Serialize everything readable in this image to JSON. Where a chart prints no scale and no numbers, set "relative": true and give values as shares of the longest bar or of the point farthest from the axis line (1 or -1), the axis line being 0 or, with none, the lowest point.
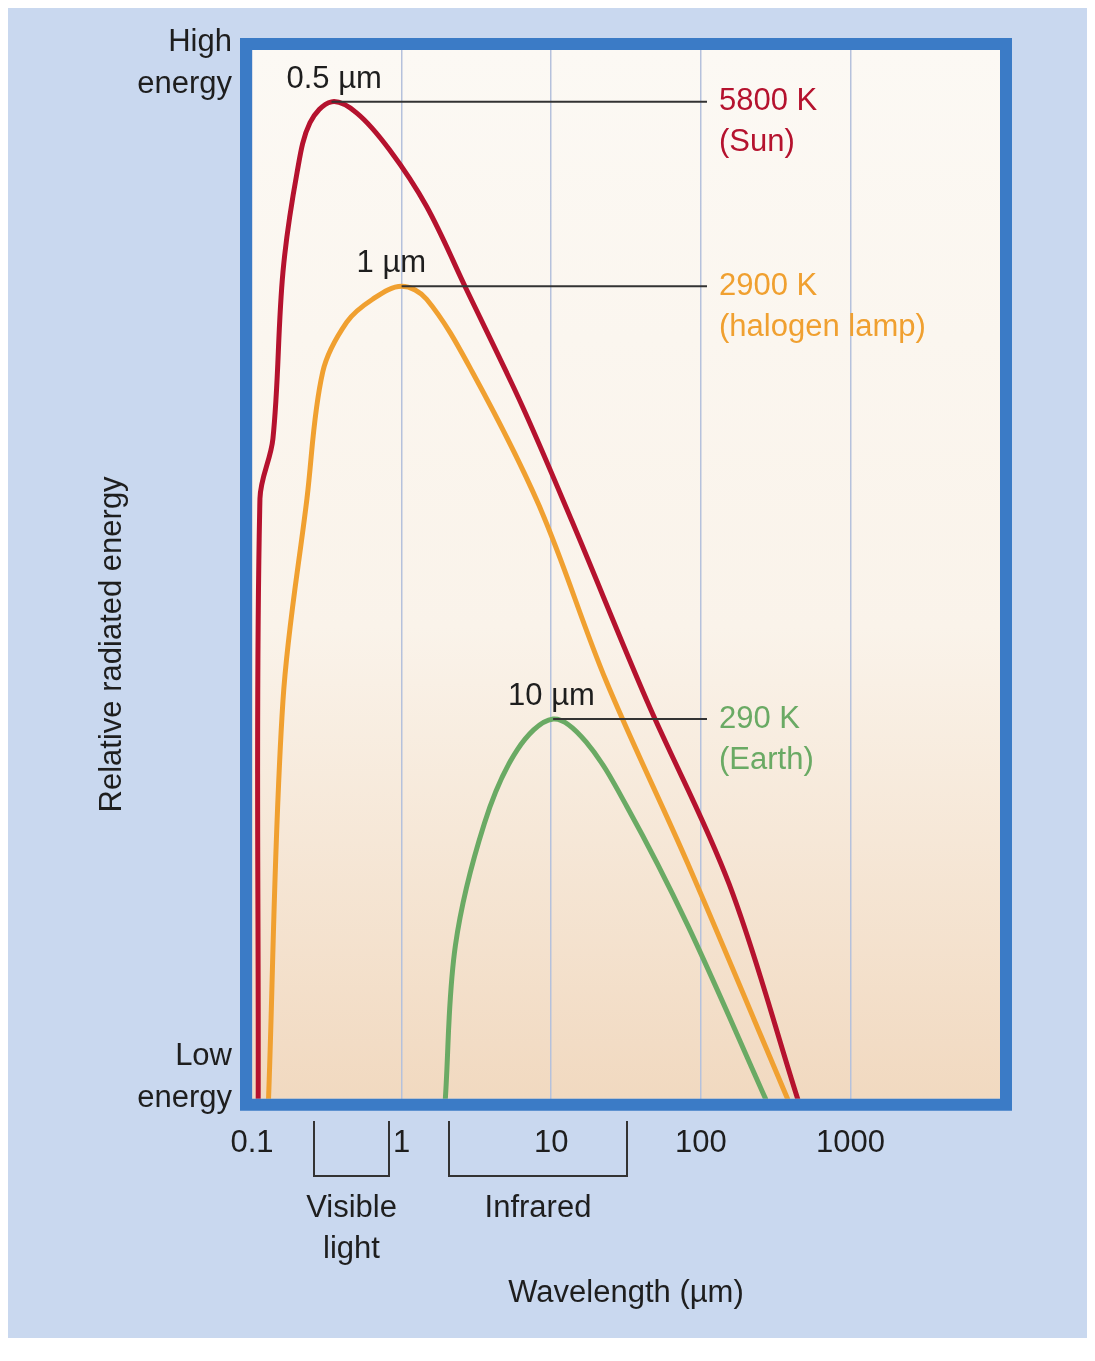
{
  "chart_data": {
    "type": "line",
    "relative": true,
    "log": "x",
    "xlabel": "Wavelength (µm)",
    "ylabel": "Relative radiated energy",
    "xlim": [
      0.1,
      10000
    ],
    "xticks": [
      0.1,
      1,
      10,
      100,
      1000
    ],
    "grid": "x",
    "legend": false,
    "series": [
      {
        "name": "5800 K\n(Sun)",
        "color": "#b5122e",
        "x": [
          0.11,
          0.113,
          0.138,
          0.161,
          0.2,
          0.244,
          0.34,
          0.5,
          0.83,
          1.47,
          2.71,
          6.4,
          13.8,
          43.7,
          155,
          444
        ],
        "values": [
          0,
          0.602,
          0.662,
          0.829,
          0.929,
          0.979,
          1,
          0.989,
          0.952,
          0.895,
          0.812,
          0.695,
          0.579,
          0.399,
          0.215,
          0
        ]
      },
      {
        "name": "2900 K\n(halogen lamp)",
        "color": "#f0a030",
        "x": [
          0.129,
          0.161,
          0.233,
          0.297,
          0.43,
          0.64,
          1.0,
          1.47,
          2.97,
          8.3,
          23.3,
          81.8,
          380
        ],
        "values": [
          0,
          0.399,
          0.602,
          0.729,
          0.779,
          0.802,
          0.815,
          0.802,
          0.729,
          0.595,
          0.419,
          0.236,
          0
        ]
      },
      {
        "name": "290 K\n(Earth)",
        "color": "#6aaa64",
        "x": [
          1.96,
          2.29,
          3.57,
          5.93,
          10.3,
          17.1,
          32.1,
          81.8,
          271
        ],
        "values": [
          0,
          0.154,
          0.276,
          0.35,
          0.381,
          0.358,
          0.293,
          0.174,
          0
        ]
      }
    ],
    "annotations": [
      "High energy",
      "Low energy",
      "0.5 µm",
      "1 µm",
      "10 µm",
      "Visible light",
      "Infrared"
    ]
  }
}
